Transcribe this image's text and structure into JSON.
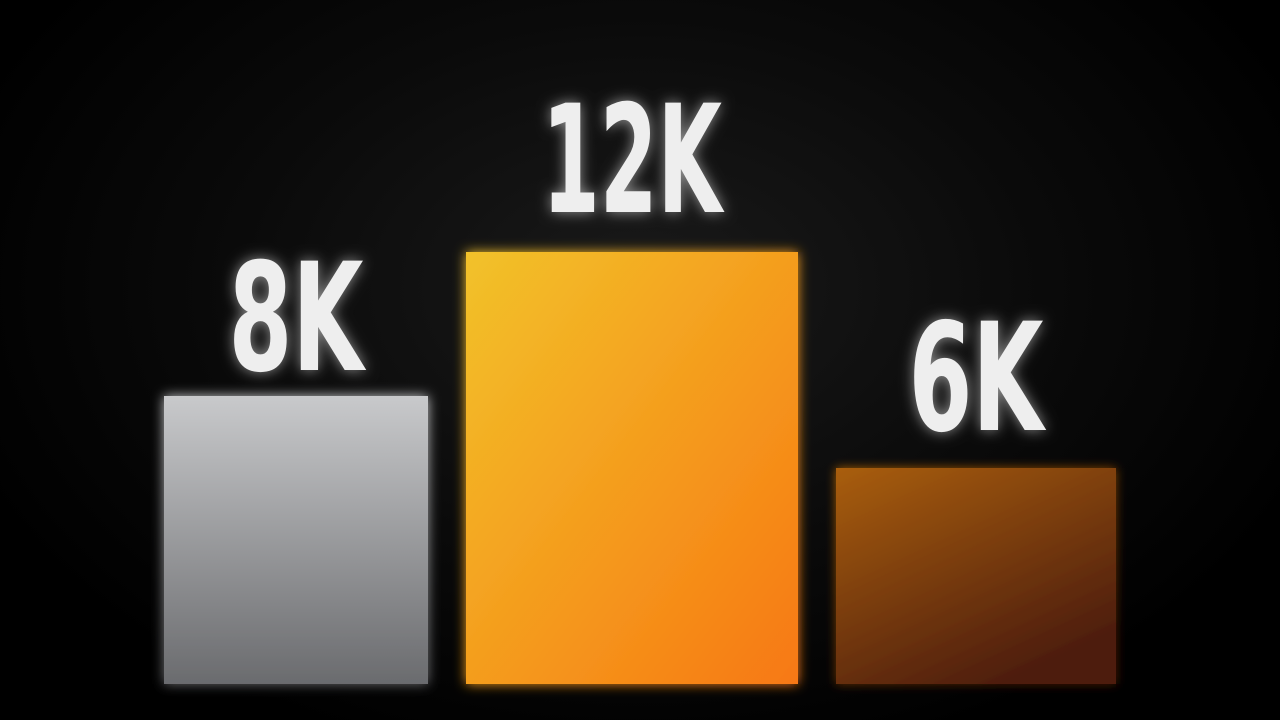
{
  "chart_data": {
    "type": "bar",
    "categories": [
      "",
      "",
      ""
    ],
    "values": [
      8000,
      12000,
      6000
    ],
    "data_labels": [
      "8K",
      "12K",
      "6K"
    ],
    "title": "",
    "xlabel": "",
    "ylabel": "",
    "ylim": [
      0,
      12000
    ],
    "grid": false,
    "legend": "none",
    "colors": {
      "bar_1": [
        "#c8c9cb",
        "#6a6b6e"
      ],
      "bar_2": [
        "#f2c22a",
        "#f77812"
      ],
      "bar_3": [
        "#a95e0c",
        "#4d1d0c"
      ],
      "label": "#eeeeee",
      "background": "#000000"
    }
  }
}
